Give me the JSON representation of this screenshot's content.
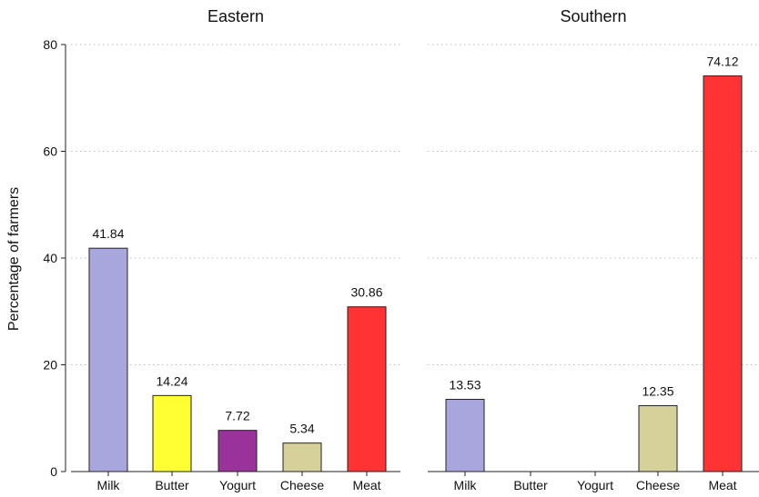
{
  "ylabel": "Percentage of farmers",
  "chart_data": {
    "type": "bar",
    "ylabel": "Percentage of farmers",
    "ylim": [
      0,
      80
    ],
    "yticks": [
      0,
      20,
      40,
      60,
      80
    ],
    "grid": true,
    "categories": [
      "Milk",
      "Butter",
      "Yogurt",
      "Cheese",
      "Meat"
    ],
    "colors": [
      "#a9a5dd",
      "#ffff33",
      "#993399",
      "#d6d09a",
      "#ff3333"
    ],
    "panels": [
      {
        "title": "Eastern",
        "values": [
          41.84,
          14.24,
          7.72,
          5.34,
          30.86
        ],
        "labels": [
          "41.84",
          "14.24",
          "7.72",
          "5.34",
          "30.86"
        ]
      },
      {
        "title": "Southern",
        "values": [
          13.53,
          null,
          null,
          12.35,
          74.12
        ],
        "labels": [
          "13.53",
          "",
          "",
          "12.35",
          "74.12"
        ]
      }
    ]
  }
}
